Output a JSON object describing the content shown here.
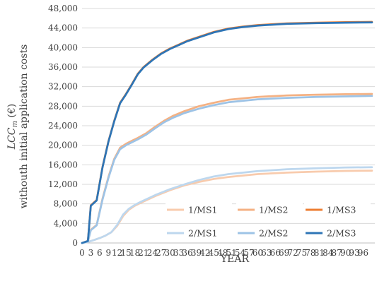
{
  "chart_data": {
    "type": "line",
    "xlabel": "YEAR",
    "ylabel_line1": "LCC",
    "ylabel_sub": "m",
    "ylabel_unit": " (€)",
    "ylabel_line2": "withouth initial application costs",
    "xlim": [
      0,
      100
    ],
    "ylim": [
      0,
      48000
    ],
    "x_ticks": [
      0,
      3,
      6,
      9,
      12,
      15,
      18,
      21,
      24,
      27,
      30,
      33,
      36,
      39,
      42,
      45,
      48,
      51,
      54,
      57,
      60,
      63,
      66,
      69,
      72,
      75,
      78,
      81,
      84,
      87,
      90,
      93,
      96
    ],
    "y_ticks": [
      0,
      4000,
      8000,
      12000,
      16000,
      20000,
      24000,
      28000,
      32000,
      36000,
      40000,
      44000,
      48000
    ],
    "y_tick_labels": [
      "0",
      "4,000",
      "8,000",
      "12,000",
      "16,000",
      "20,000",
      "24,000",
      "28,000",
      "32,000",
      "36,000",
      "40,000",
      "44,000",
      "48,000"
    ],
    "grid": "horizontal",
    "legend_position": "bottom-right",
    "series": [
      {
        "name": "1/MS1",
        "color": "#f8cbad",
        "x": [
          0,
          2,
          4,
          6,
          8,
          10,
          12,
          14,
          16,
          18,
          20,
          25,
          30,
          35,
          40,
          45,
          50,
          60,
          70,
          80,
          90,
          99
        ],
        "values": [
          0,
          200,
          600,
          1000,
          1500,
          2200,
          3500,
          5500,
          6800,
          7600,
          8200,
          9600,
          10800,
          11800,
          12500,
          13100,
          13500,
          14100,
          14400,
          14600,
          14750,
          14800
        ]
      },
      {
        "name": "1/MS2",
        "color": "#f4b183",
        "x": [
          0,
          2,
          3,
          5,
          7,
          9,
          11,
          13,
          15,
          17,
          19,
          22,
          25,
          28,
          31,
          35,
          40,
          45,
          50,
          60,
          70,
          80,
          90,
          99
        ],
        "values": [
          0,
          300,
          2700,
          3700,
          9100,
          13500,
          17200,
          19500,
          20300,
          20900,
          21500,
          22500,
          23800,
          25000,
          26000,
          27000,
          28000,
          28700,
          29300,
          29900,
          30200,
          30350,
          30450,
          30500
        ]
      },
      {
        "name": "1/MS3",
        "color": "#ed7d31",
        "x": [
          0,
          2,
          3,
          5,
          7,
          9,
          11,
          13,
          15,
          17,
          19,
          21,
          24,
          27,
          30,
          33,
          36,
          40,
          45,
          50,
          55,
          60,
          70,
          80,
          90,
          99
        ],
        "values": [
          0,
          400,
          7700,
          8800,
          15600,
          20800,
          25000,
          28700,
          30500,
          32500,
          34600,
          36000,
          37500,
          38800,
          39800,
          40600,
          41400,
          42200,
          43200,
          43900,
          44300,
          44600,
          44950,
          45100,
          45200,
          45250
        ]
      },
      {
        "name": "2/MS1",
        "color": "#bdd7ee",
        "x": [
          0,
          2,
          4,
          6,
          8,
          10,
          12,
          14,
          16,
          18,
          20,
          25,
          30,
          35,
          40,
          45,
          50,
          60,
          70,
          80,
          90,
          99
        ],
        "values": [
          0,
          200,
          600,
          1000,
          1500,
          2200,
          3700,
          5800,
          7000,
          7800,
          8400,
          9800,
          11000,
          12000,
          12900,
          13600,
          14100,
          14700,
          15100,
          15300,
          15450,
          15500
        ]
      },
      {
        "name": "2/MS2",
        "color": "#9dc3e6",
        "x": [
          0,
          2,
          3,
          5,
          7,
          9,
          11,
          13,
          15,
          17,
          19,
          22,
          25,
          28,
          31,
          35,
          40,
          45,
          50,
          60,
          70,
          80,
          90,
          99
        ],
        "values": [
          0,
          300,
          2600,
          3600,
          8900,
          13300,
          17000,
          19200,
          20000,
          20600,
          21200,
          22200,
          23500,
          24700,
          25600,
          26600,
          27500,
          28200,
          28800,
          29400,
          29700,
          29900,
          30000,
          30100
        ]
      },
      {
        "name": "2/MS3",
        "color": "#2e75b6",
        "x": [
          0,
          2,
          3,
          5,
          7,
          9,
          11,
          13,
          15,
          17,
          19,
          21,
          24,
          27,
          30,
          33,
          36,
          40,
          45,
          50,
          55,
          60,
          70,
          80,
          90,
          99
        ],
        "values": [
          0,
          400,
          7600,
          8700,
          15500,
          20700,
          24900,
          28600,
          30400,
          32400,
          34500,
          35900,
          37400,
          38700,
          39700,
          40500,
          41300,
          42100,
          43100,
          43800,
          44200,
          44500,
          44850,
          45000,
          45100,
          45150
        ]
      }
    ]
  }
}
